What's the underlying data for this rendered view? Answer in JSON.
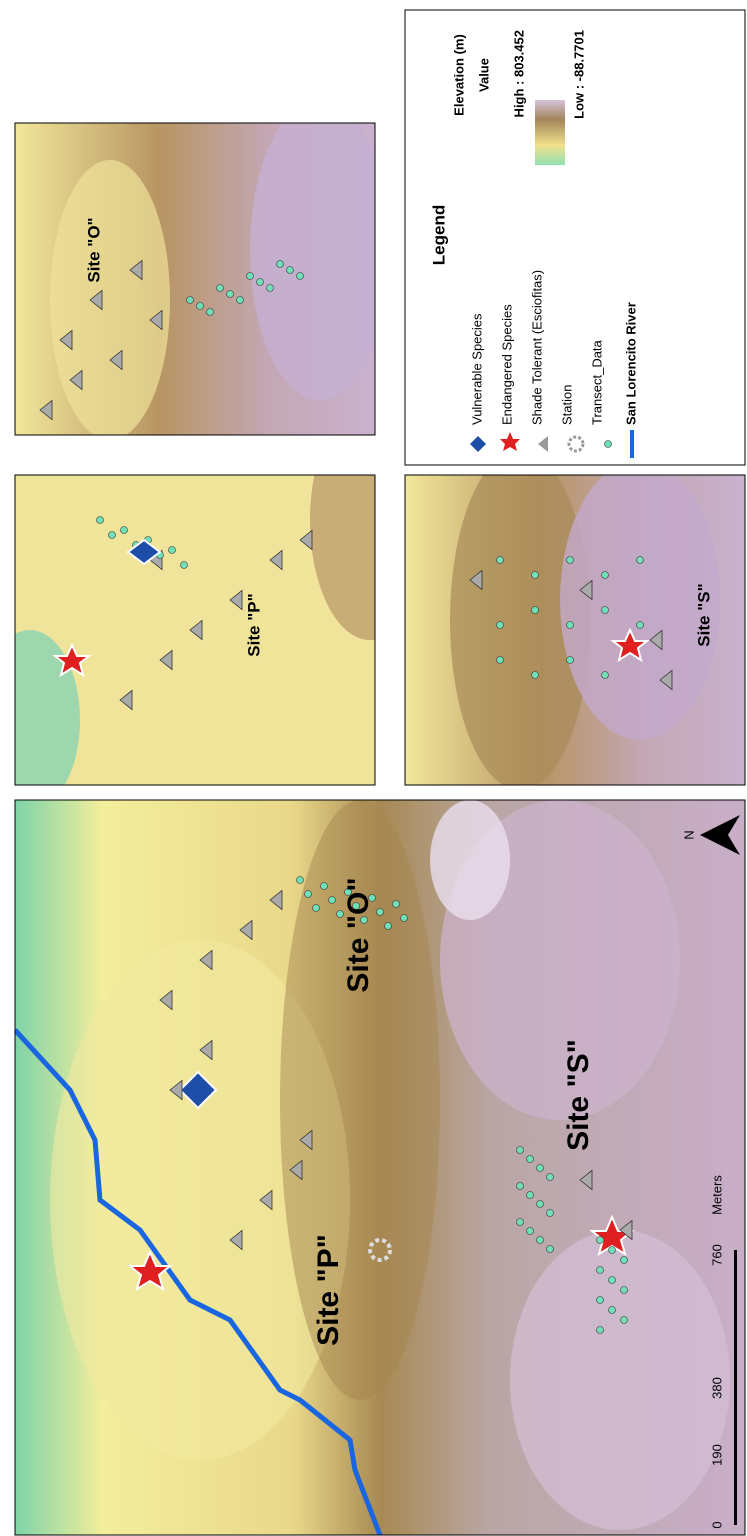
{
  "legend": {
    "title": "Legend",
    "items": [
      "Vulnerable Species",
      "Endangered Species",
      "Shade Tolerant (Esciofitas)",
      "Station",
      "Transect_Data",
      "San Lorencito River"
    ],
    "elevation": {
      "title": "Elevation (m)",
      "subtitle": "Value",
      "high": "High : 803.452",
      "low": "Low : -88.7701"
    }
  },
  "insets": [
    {
      "label": "Site \"O\""
    },
    {
      "label": "Site \"P\""
    },
    {
      "label": "Site \"S\""
    }
  ],
  "main": {
    "labels": [
      "Site \"O\"",
      "Site \"P\"",
      "Site \"S\""
    ],
    "scale": {
      "ticks": [
        "0",
        "190",
        "380",
        "760"
      ],
      "unit": "Meters"
    },
    "north": "N"
  }
}
